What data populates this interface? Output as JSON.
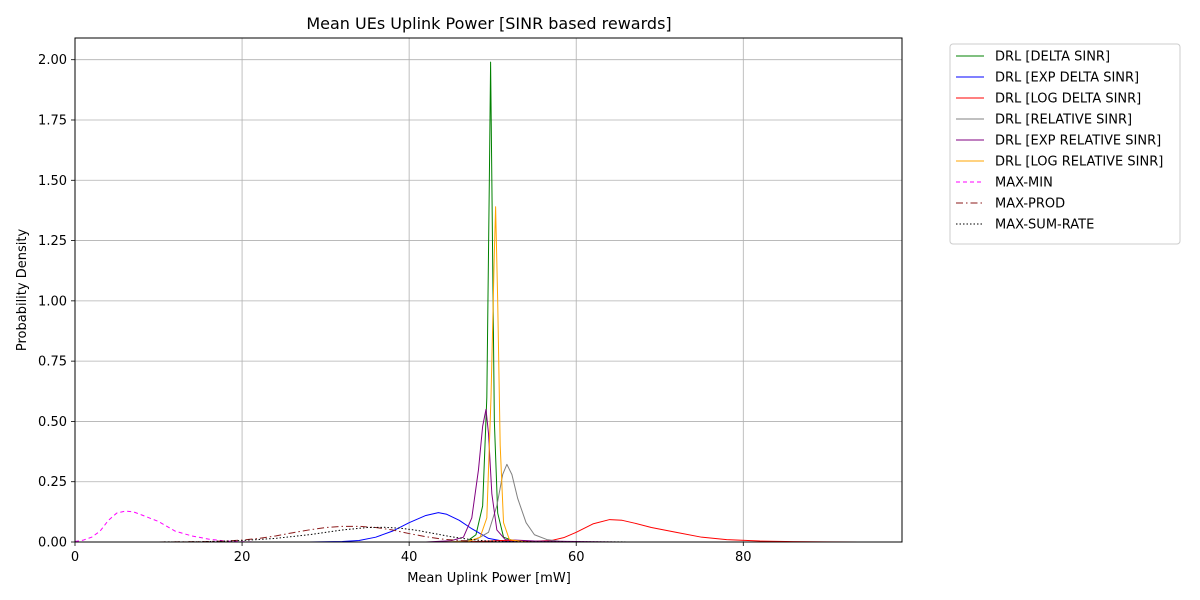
{
  "chart_data": {
    "type": "line",
    "title": "Mean UEs Uplink Power [SINR based rewards]",
    "xlabel": "Mean Uplink Power [mW]",
    "ylabel": "Probability Density",
    "xlim": [
      0,
      99
    ],
    "ylim": [
      0,
      2.09
    ],
    "x_ticks": [
      0,
      20,
      40,
      60,
      80
    ],
    "y_ticks": [
      0.0,
      0.25,
      0.5,
      0.75,
      1.0,
      1.25,
      1.5,
      1.75,
      2.0
    ],
    "x_tick_labels": [
      "0",
      "20",
      "40",
      "60",
      "80"
    ],
    "y_tick_labels": [
      "0.00",
      "0.25",
      "0.50",
      "0.75",
      "1.00",
      "1.25",
      "1.50",
      "1.75",
      "2.00"
    ],
    "grid": true,
    "legend_position": "outside-top-right",
    "series": [
      {
        "name": "DRL [DELTA SINR]",
        "color": "#008000",
        "dash": "solid",
        "points": [
          [
            45,
            0
          ],
          [
            47,
            0.005
          ],
          [
            48,
            0.03
          ],
          [
            48.8,
            0.15
          ],
          [
            49.3,
            0.6
          ],
          [
            49.6,
            1.5
          ],
          [
            49.75,
            1.99
          ],
          [
            49.9,
            1.5
          ],
          [
            50.2,
            0.5
          ],
          [
            50.6,
            0.12
          ],
          [
            51.3,
            0.02
          ],
          [
            52.5,
            0.005
          ],
          [
            55,
            0
          ]
        ]
      },
      {
        "name": "DRL [EXP DELTA SINR]",
        "color": "#0000ff",
        "dash": "solid",
        "points": [
          [
            28,
            0
          ],
          [
            32,
            0.002
          ],
          [
            34,
            0.006
          ],
          [
            36,
            0.02
          ],
          [
            38,
            0.045
          ],
          [
            40,
            0.08
          ],
          [
            42,
            0.11
          ],
          [
            43.5,
            0.122
          ],
          [
            44.5,
            0.115
          ],
          [
            46,
            0.09
          ],
          [
            47.5,
            0.055
          ],
          [
            48.5,
            0.035
          ],
          [
            49.5,
            0.015
          ],
          [
            51,
            0.005
          ],
          [
            53,
            0.001
          ],
          [
            56,
            0
          ]
        ]
      },
      {
        "name": "DRL [LOG DELTA SINR]",
        "color": "#ff0000",
        "dash": "solid",
        "points": [
          [
            46,
            0
          ],
          [
            49,
            0.003
          ],
          [
            51,
            0.006
          ],
          [
            53,
            0.005
          ],
          [
            55,
            0.003
          ],
          [
            57,
            0.006
          ],
          [
            58.5,
            0.018
          ],
          [
            60,
            0.04
          ],
          [
            62,
            0.075
          ],
          [
            64,
            0.093
          ],
          [
            65.5,
            0.09
          ],
          [
            67,
            0.078
          ],
          [
            69,
            0.06
          ],
          [
            72,
            0.04
          ],
          [
            75,
            0.02
          ],
          [
            78,
            0.01
          ],
          [
            82,
            0.004
          ],
          [
            86,
            0.0015
          ],
          [
            90,
            0.0005
          ],
          [
            94,
            0
          ]
        ]
      },
      {
        "name": "DRL [RELATIVE SINR]",
        "color": "#808080",
        "dash": "solid",
        "points": [
          [
            45,
            0
          ],
          [
            48,
            0.01
          ],
          [
            49.5,
            0.04
          ],
          [
            50.5,
            0.15
          ],
          [
            51.2,
            0.28
          ],
          [
            51.7,
            0.322
          ],
          [
            52.3,
            0.28
          ],
          [
            53,
            0.18
          ],
          [
            54,
            0.08
          ],
          [
            55,
            0.03
          ],
          [
            56.5,
            0.01
          ],
          [
            58,
            0.003
          ],
          [
            60,
            0
          ]
        ]
      },
      {
        "name": "DRL [EXP RELATIVE SINR]",
        "color": "#800080",
        "dash": "solid",
        "points": [
          [
            42,
            0
          ],
          [
            45,
            0.005
          ],
          [
            46.5,
            0.02
          ],
          [
            47.5,
            0.1
          ],
          [
            48.3,
            0.3
          ],
          [
            48.8,
            0.48
          ],
          [
            49.2,
            0.55
          ],
          [
            49.5,
            0.45
          ],
          [
            49.9,
            0.2
          ],
          [
            50.5,
            0.05
          ],
          [
            51.5,
            0.01
          ],
          [
            55,
            0.004
          ],
          [
            60,
            0.002
          ],
          [
            65,
            0
          ]
        ]
      },
      {
        "name": "DRL [LOG RELATIVE SINR]",
        "color": "#ffa500",
        "dash": "solid",
        "points": [
          [
            44,
            0
          ],
          [
            47,
            0.002
          ],
          [
            48.5,
            0.02
          ],
          [
            49.3,
            0.1
          ],
          [
            49.8,
            0.6
          ],
          [
            50.2,
            1.2
          ],
          [
            50.35,
            1.39
          ],
          [
            50.6,
            1.0
          ],
          [
            50.9,
            0.4
          ],
          [
            51.3,
            0.08
          ],
          [
            52,
            0.01
          ],
          [
            54,
            0
          ]
        ]
      },
      {
        "name": "MAX-MIN",
        "color": "#ff00ff",
        "dash": "4,3",
        "points": [
          [
            0,
            0.002
          ],
          [
            1,
            0.008
          ],
          [
            2,
            0.02
          ],
          [
            3,
            0.045
          ],
          [
            4,
            0.09
          ],
          [
            5,
            0.12
          ],
          [
            6,
            0.128
          ],
          [
            7,
            0.125
          ],
          [
            8,
            0.112
          ],
          [
            10,
            0.085
          ],
          [
            12,
            0.045
          ],
          [
            14,
            0.025
          ],
          [
            16,
            0.012
          ],
          [
            18,
            0.004
          ],
          [
            20,
            0.001
          ],
          [
            22,
            0
          ]
        ]
      },
      {
        "name": "MAX-PROD",
        "color": "#8b1a1a",
        "dash": "7,3,1.5,3",
        "points": [
          [
            10,
            0
          ],
          [
            16,
            0.002
          ],
          [
            18,
            0.004
          ],
          [
            20,
            0.008
          ],
          [
            22,
            0.015
          ],
          [
            24,
            0.025
          ],
          [
            26,
            0.038
          ],
          [
            28,
            0.05
          ],
          [
            30,
            0.06
          ],
          [
            32,
            0.065
          ],
          [
            34,
            0.065
          ],
          [
            36,
            0.06
          ],
          [
            38,
            0.05
          ],
          [
            40,
            0.035
          ],
          [
            42,
            0.022
          ],
          [
            44,
            0.012
          ],
          [
            46,
            0.006
          ],
          [
            48,
            0.002
          ],
          [
            52,
            0
          ]
        ]
      },
      {
        "name": "MAX-SUM-RATE",
        "color": "#000000",
        "dash": "1.5,2",
        "points": [
          [
            9,
            0
          ],
          [
            15,
            0.001
          ],
          [
            20,
            0.006
          ],
          [
            24,
            0.015
          ],
          [
            28,
            0.03
          ],
          [
            32,
            0.05
          ],
          [
            35,
            0.06
          ],
          [
            37,
            0.061
          ],
          [
            39,
            0.057
          ],
          [
            41,
            0.048
          ],
          [
            43,
            0.035
          ],
          [
            45,
            0.022
          ],
          [
            47,
            0.012
          ],
          [
            49,
            0.005
          ],
          [
            52,
            0.002
          ],
          [
            56,
            0.001
          ],
          [
            62,
            0.0005
          ],
          [
            70,
            0
          ]
        ]
      }
    ]
  }
}
